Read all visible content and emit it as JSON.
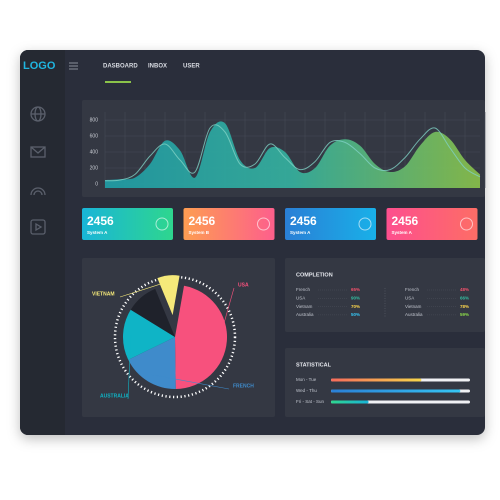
{
  "nav": {
    "logo": "LOGO",
    "menu": [
      "DASBOARD",
      "INBOX",
      "USER"
    ]
  },
  "area_chart": {
    "ylim": [
      -50,
      900
    ],
    "yticks": [
      0,
      200,
      400,
      600,
      800
    ],
    "series": [
      {
        "color": "#8bc34a",
        "values": [
          50,
          60,
          80,
          250,
          540,
          420,
          80,
          650,
          760,
          300,
          200,
          450,
          400,
          150,
          200,
          480,
          560,
          480,
          250,
          150,
          220,
          480,
          650,
          560,
          300,
          120
        ]
      },
      {
        "color": "#7fd1c4",
        "values": [
          40,
          50,
          120,
          350,
          500,
          300,
          150,
          700,
          650,
          250,
          250,
          500,
          330,
          180,
          280,
          520,
          520,
          380,
          200,
          180,
          330,
          560,
          700,
          450,
          200,
          90
        ]
      }
    ]
  },
  "cards": [
    {
      "value": 2456,
      "label": "System A",
      "colors": [
        "#19b5d8",
        "#2ed68e"
      ]
    },
    {
      "value": 2456,
      "label": "System B",
      "colors": [
        "#fd9d52",
        "#fd5f8c"
      ]
    },
    {
      "value": 2456,
      "label": "System A",
      "colors": [
        "#2a7fd6",
        "#19b0e8"
      ]
    },
    {
      "value": 2456,
      "label": "System A",
      "colors": [
        "#fd4f8e",
        "#fd6d66"
      ]
    }
  ],
  "pie": {
    "slices": [
      {
        "name": "USA",
        "value": 47,
        "color": "#f7517d"
      },
      {
        "name": "FRENCH",
        "value": 18,
        "color": "#3f8bcb"
      },
      {
        "name": "AUSTRALIA",
        "value": 16,
        "color": "#0fb4c6"
      },
      {
        "name": null,
        "value": 10,
        "color": "#1f222b"
      },
      {
        "name": "VIETNAM",
        "value": 9,
        "color": "#f5e97a"
      }
    ]
  },
  "completion": {
    "title": "COMPLETION",
    "columns": [
      [
        {
          "name": "French",
          "value": "65%",
          "color": "#f4516c"
        },
        {
          "name": "USA",
          "value": "90%",
          "color": "#34bfa3"
        },
        {
          "name": "Vietnam",
          "value": "70%",
          "color": "#ffd84d"
        },
        {
          "name": "Australia",
          "value": "50%",
          "color": "#36c6f4"
        }
      ],
      [
        {
          "name": "French",
          "value": "48%",
          "color": "#f4516c"
        },
        {
          "name": "USA",
          "value": "66%",
          "color": "#34bfa3"
        },
        {
          "name": "Vietnam",
          "value": "78%",
          "color": "#ffd84d"
        },
        {
          "name": "Australia",
          "value": "59%",
          "color": "#8bd94a"
        }
      ]
    ]
  },
  "statistical": {
    "title": "STATISTICAL",
    "rows": [
      {
        "name": "Mon - Tue",
        "value": 65,
        "colors": [
          "#f76b5b",
          "#f7d64b"
        ]
      },
      {
        "name": "Wed - Thu",
        "value": 93,
        "colors": [
          "#2a7fd6",
          "#36c6f4"
        ]
      },
      {
        "name": "Fri - Sat - Sun",
        "value": 27,
        "colors": [
          "#2ed68e",
          "#19b5d8"
        ]
      }
    ]
  }
}
